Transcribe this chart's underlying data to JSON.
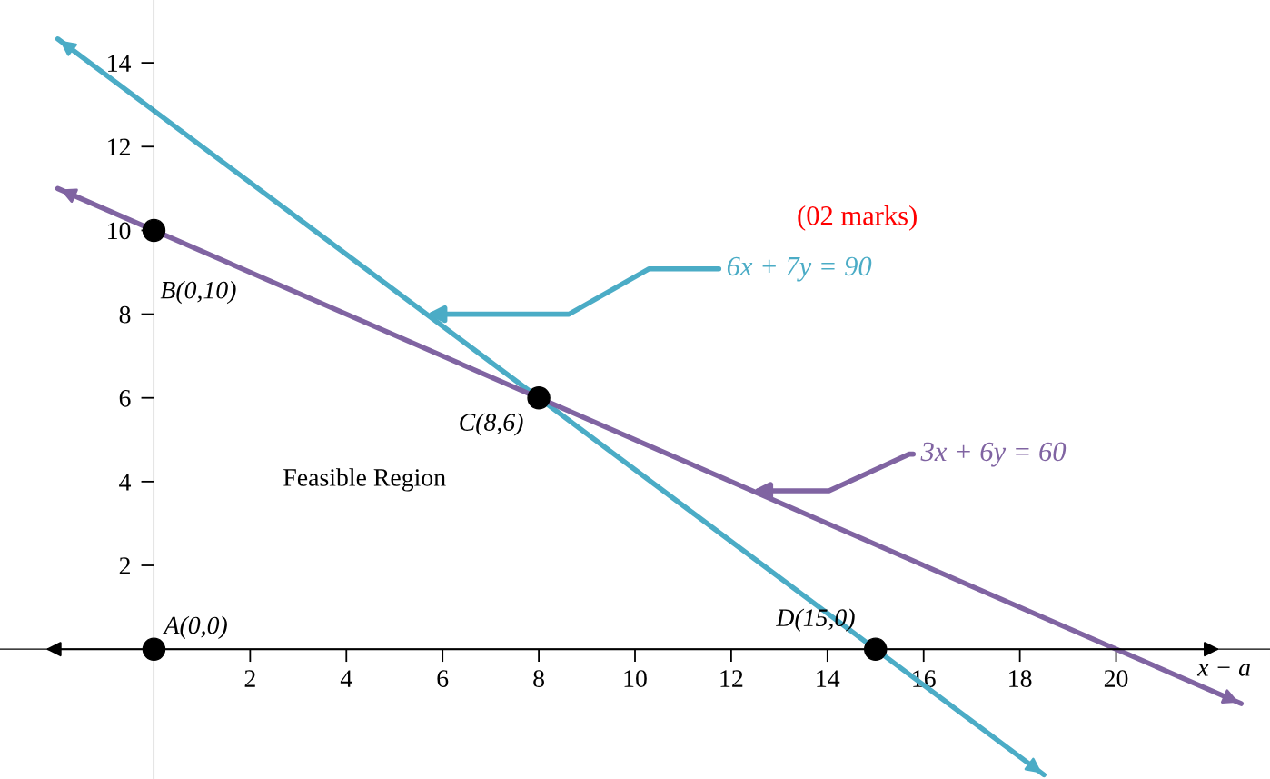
{
  "chart_data": {
    "type": "line",
    "xlabel": "x − a",
    "xlim": [
      -3.2,
      23.2
    ],
    "ylim": [
      -3.1,
      15.5
    ],
    "xticks": [
      2,
      4,
      6,
      8,
      10,
      12,
      14,
      16,
      18,
      20
    ],
    "yticks": [
      2,
      4,
      6,
      8,
      10,
      12,
      14
    ],
    "grid": false,
    "legend": false,
    "series": [
      {
        "name": "6x + 7y = 90",
        "color": "#4bacc6",
        "x": [
          -2,
          18.5
        ],
        "values": [
          14.57,
          -3
        ],
        "marker": "none"
      },
      {
        "name": "3x + 6y = 60",
        "color": "#8064a2",
        "x": [
          -2,
          22.6
        ],
        "values": [
          11,
          -1.3
        ],
        "marker": "none"
      },
      {
        "type": "scatter",
        "color": "#000000",
        "x": [
          0,
          0,
          8,
          15
        ],
        "values": [
          0,
          10,
          6,
          0
        ],
        "marker": "circle",
        "value_labels": [
          "A(0,0)",
          "B(0,10)",
          "C(8,6)",
          "D(15,0)"
        ]
      }
    ],
    "annotations": [
      "Feasible Region",
      "(02 marks)"
    ]
  }
}
